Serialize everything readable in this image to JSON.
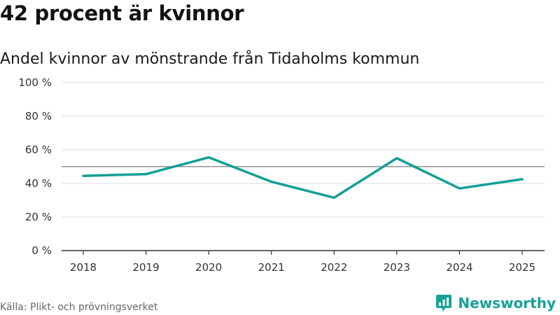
{
  "header": {
    "title": "42 procent är kvinnor",
    "subtitle": "Andel kvinnor av mönstrande från Tidaholms kommun"
  },
  "footer": {
    "source": "Källa: Plikt- och prövningsverket",
    "brand": "Newsworthy",
    "brand_icon": "newsworthy-logo-icon"
  },
  "colors": {
    "line": "#13a096",
    "reference": "#7a7a7a",
    "grid": "#dddddd",
    "axis": "#333333",
    "brand": "#17a297"
  },
  "chart_data": {
    "type": "line",
    "title": "42 procent är kvinnor",
    "subtitle": "Andel kvinnor av mönstrande från Tidaholms kommun",
    "xlabel": "",
    "ylabel": "",
    "categories": [
      "2018",
      "2019",
      "2020",
      "2021",
      "2022",
      "2023",
      "2024",
      "2025"
    ],
    "series": [
      {
        "name": "Andel kvinnor",
        "values": [
          44.5,
          45.5,
          55.5,
          41,
          31.5,
          55,
          37,
          42.5
        ]
      }
    ],
    "ylim": [
      0,
      100
    ],
    "yticks": [
      0,
      20,
      40,
      60,
      80,
      100
    ],
    "ytick_labels": [
      "0 %",
      "20 %",
      "40 %",
      "60 %",
      "80 %",
      "100 %"
    ],
    "reference_line": 50,
    "grid": true,
    "legend": "none"
  }
}
